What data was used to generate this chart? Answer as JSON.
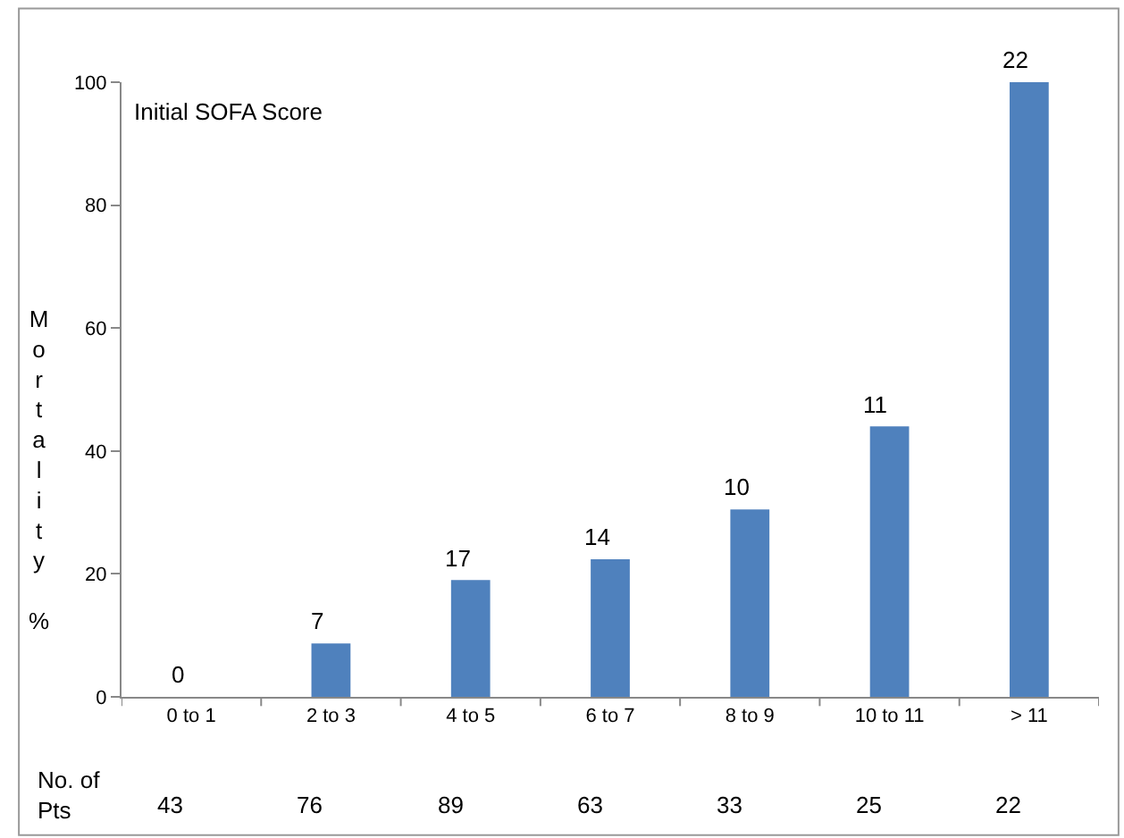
{
  "chart_data": {
    "type": "bar",
    "title": "Initial SOFA Score",
    "ylabel": "M\no\nr\nt\na\nl\ni\nt\ny\n\n%",
    "categories": [
      "0 to 1",
      "2 to 3",
      "4 to 5",
      "6 to 7",
      "8 to 9",
      "10 to 11",
      "> 11"
    ],
    "values": [
      0,
      8.7,
      19,
      22.4,
      30.5,
      44,
      100
    ],
    "color": "#4f81bd",
    "ylim": [
      0,
      100
    ],
    "yticks": [
      0,
      20,
      40,
      60,
      80,
      100
    ],
    "legend": false,
    "annotations": [
      "No. of\nPts",
      "43",
      "76",
      "89",
      "63",
      "33",
      "25",
      "22",
      {
        "text": "0",
        "x": "0 to 1",
        "y": 0
      },
      {
        "text": "7",
        "x": "2 to 3",
        "y": 8.7
      },
      {
        "text": "17",
        "x": "4 to 5",
        "y": 19
      },
      {
        "text": "14",
        "x": "6 to 7",
        "y": 22.4
      },
      {
        "text": "10",
        "x": "8 to 9",
        "y": 30.5
      },
      {
        "text": "11",
        "x": "10 to 11",
        "y": 44
      },
      {
        "text": "22",
        "x": "> 11",
        "y": 100
      }
    ]
  }
}
